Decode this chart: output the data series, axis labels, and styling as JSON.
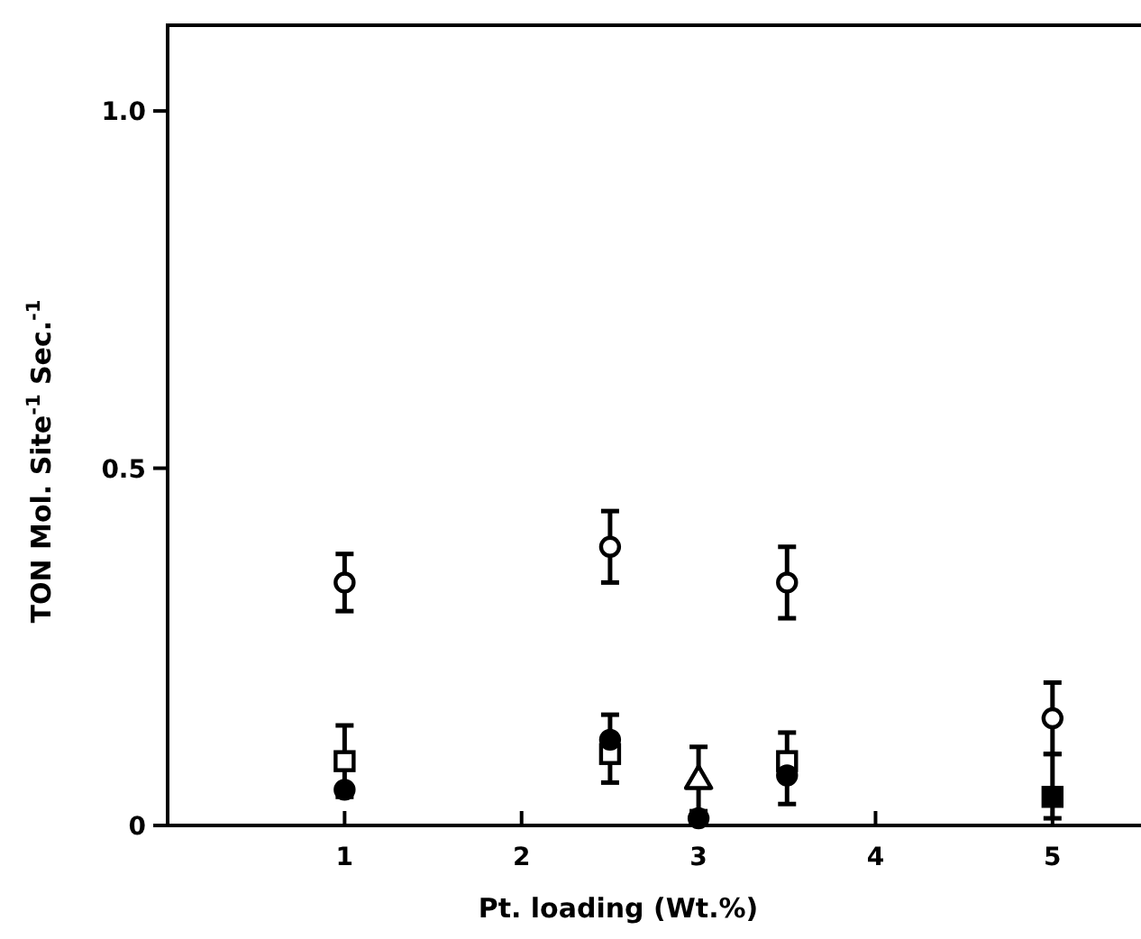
{
  "chart_data": {
    "type": "scatter",
    "xlabel": "Pt. loading (Wt.%)",
    "ylabel": "TON Mol. Site$^{-1}$ Sec.$^{-1}$",
    "xlim": [
      0,
      5.5
    ],
    "ylim": [
      0,
      1.12
    ],
    "xticks": [
      1,
      2,
      3,
      4,
      5
    ],
    "yticks": [
      0,
      0.5,
      {
        "value": 1.0,
        "label": "1.0"
      }
    ],
    "grid": false,
    "series": [
      {
        "color": "#ffffff",
        "marker": "circle",
        "x": [
          1,
          2.5,
          3.5,
          5
        ],
        "values": [
          0.34,
          0.39,
          0.34,
          0.15
        ],
        "errors": [
          [
            0.3,
            0.38
          ],
          [
            0.34,
            0.44
          ],
          [
            0.29,
            0.39
          ],
          [
            0.1,
            0.2
          ]
        ]
      },
      {
        "color": "#ffffff",
        "marker": "square",
        "x": [
          1,
          2.5,
          3.5
        ],
        "values": [
          0.09,
          0.1,
          0.09
        ],
        "errors": [
          [
            0.04,
            0.14
          ],
          [
            0.06,
            0.155
          ],
          [
            0.03,
            0.13
          ]
        ]
      },
      {
        "color": "#000000",
        "marker": "circle",
        "x": [
          1,
          2.5,
          3,
          3.5
        ],
        "values": [
          0.05,
          0.12,
          0.01,
          0.07
        ]
      },
      {
        "color": "#ffffff",
        "marker": "triangle",
        "x": [
          3
        ],
        "values": [
          0.065
        ],
        "errors": [
          [
            0.02,
            0.11
          ]
        ]
      },
      {
        "color": "#000000",
        "marker": "square",
        "x": [
          5
        ],
        "values": [
          0.04
        ],
        "errors": [
          [
            0.01,
            0.1
          ]
        ]
      }
    ]
  }
}
